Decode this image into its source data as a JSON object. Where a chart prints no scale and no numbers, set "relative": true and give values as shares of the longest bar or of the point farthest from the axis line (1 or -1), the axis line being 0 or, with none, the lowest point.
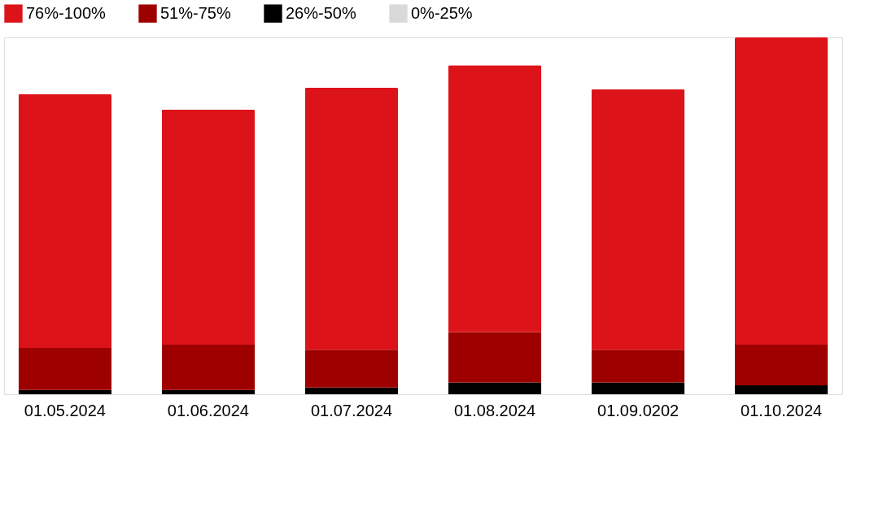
{
  "chart_data": {
    "type": "bar",
    "stacked": true,
    "relative": true,
    "legend": "top",
    "grid": false,
    "categories": [
      "01.05.2024",
      "01.06.2024",
      "01.07.2024",
      "01.08.2024",
      "01.09.0202",
      "01.10.2024"
    ],
    "series": [
      {
        "name": "0%-25%",
        "color": "#d9d9d9",
        "values": [
          0,
          0,
          0,
          0,
          0,
          0
        ]
      },
      {
        "name": "26%-50%",
        "color": "#000000",
        "values": [
          0.012,
          0.012,
          0.019,
          0.033,
          0.033,
          0.025
        ]
      },
      {
        "name": "51%-75%",
        "color": "#9e0000",
        "values": [
          0.118,
          0.127,
          0.106,
          0.141,
          0.092,
          0.114
        ]
      },
      {
        "name": "76%-100%",
        "color": "#dc1419",
        "values": [
          0.711,
          0.659,
          0.734,
          0.748,
          0.73,
          0.861
        ]
      }
    ]
  }
}
